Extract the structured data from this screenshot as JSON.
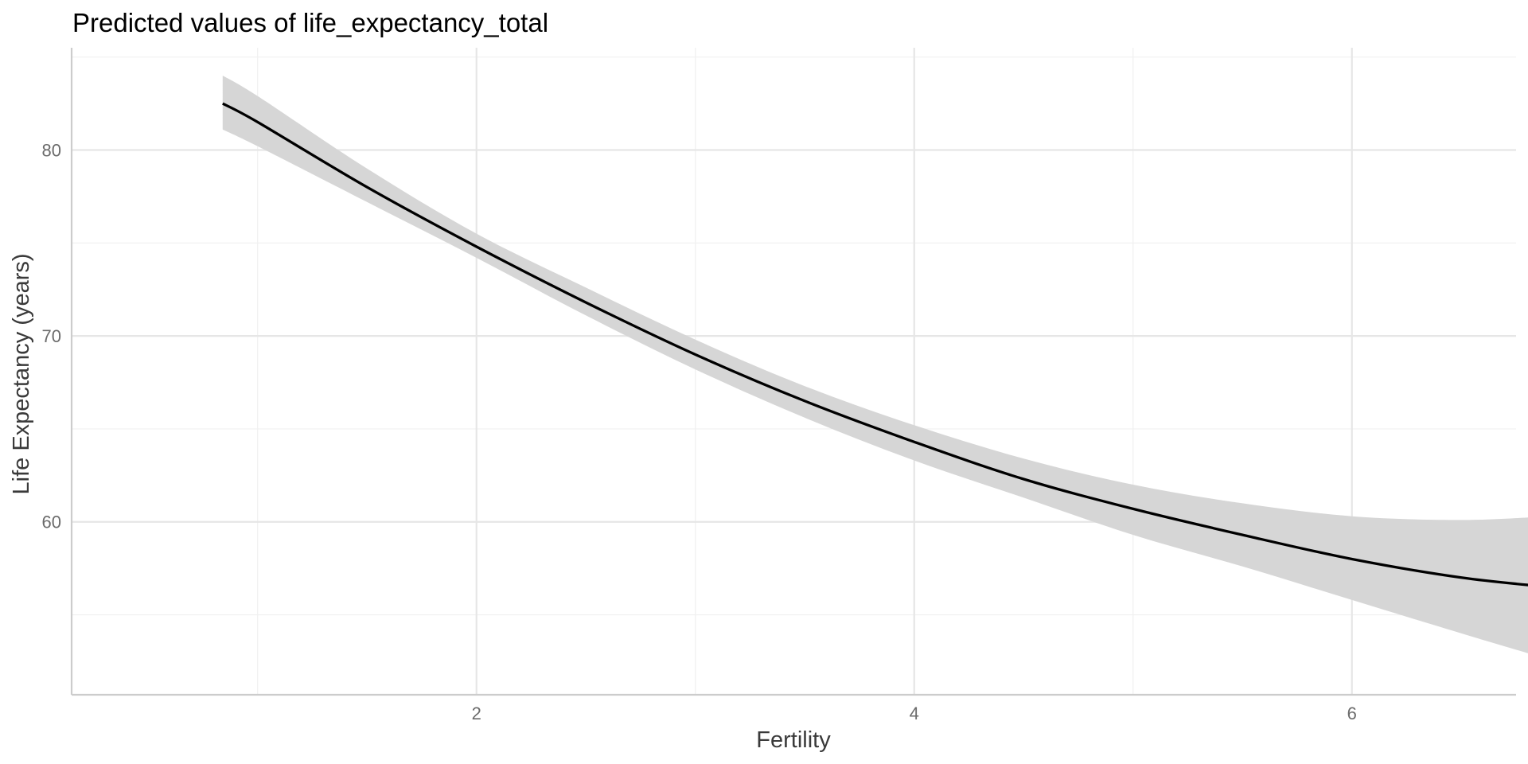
{
  "chart_data": {
    "type": "line",
    "title": "Predicted values of life_expectancy_total",
    "xlabel": "Fertility",
    "ylabel": "Life Expectancy (years)",
    "xlim": [
      0.15,
      6.75
    ],
    "ylim": [
      50.7,
      85.5
    ],
    "x_ticks": [
      2,
      4,
      6
    ],
    "x_tick_labels": [
      "2",
      "4",
      "6"
    ],
    "x_minor": [
      1,
      3,
      5,
      7
    ],
    "y_ticks": [
      60,
      70,
      80
    ],
    "y_tick_labels": [
      "60",
      "70",
      "80"
    ],
    "y_minor": [
      55,
      65,
      75,
      85
    ],
    "grid": true,
    "series": [
      {
        "x": [
          0.84,
          1.0,
          1.5,
          2.0,
          2.5,
          3.0,
          3.5,
          4.0,
          4.5,
          5.0,
          5.5,
          6.0,
          6.5,
          6.9
        ],
        "y": [
          82.5,
          81.5,
          78.0,
          74.8,
          71.8,
          69.0,
          66.5,
          64.3,
          62.3,
          60.7,
          59.3,
          58.0,
          57.0,
          56.5
        ],
        "ci_low": [
          81.1,
          80.2,
          77.2,
          74.2,
          71.1,
          68.2,
          65.6,
          63.3,
          61.3,
          59.3,
          57.6,
          55.8,
          54.0,
          52.6
        ],
        "ci_high": [
          84.0,
          82.9,
          79.0,
          75.5,
          72.6,
          69.8,
          67.3,
          65.2,
          63.4,
          62.0,
          61.0,
          60.3,
          60.1,
          60.3
        ]
      }
    ]
  }
}
